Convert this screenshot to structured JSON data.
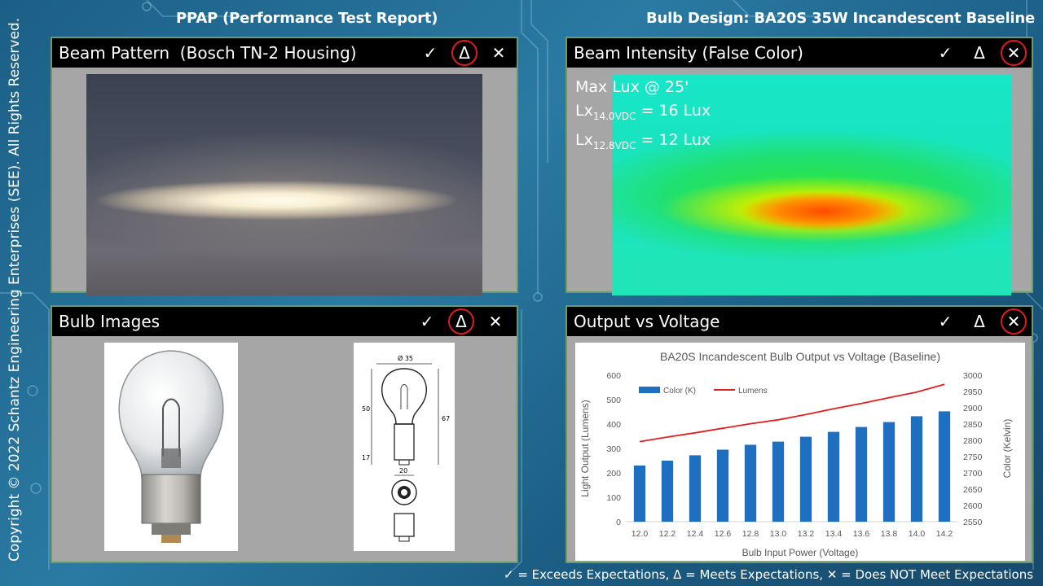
{
  "header": {
    "left": "PPAP (Performance Test Report)",
    "right": "Bulb Design: BA20S 35W Incandescent Baseline"
  },
  "copyright": "Copyright © 2022 Schantz Engineering Enterprises (SEE).  All Rights Reserved.",
  "ratings": {
    "exceeds": "✓",
    "meets": "Δ",
    "not_meet": "✕"
  },
  "panels": {
    "beam_pattern": {
      "title": "Beam Pattern  (Bosch TN-2 Housing)",
      "selected": "meets"
    },
    "beam_intensity": {
      "title": "Beam Intensity (False Color)",
      "selected": "not_meet",
      "line1": "Max Lux @ 25'",
      "lx": "Lx",
      "sub1": "14.0VDC",
      "val1": "= 16 Lux",
      "sub2": "12.8VDC",
      "val2": "= 12 Lux"
    },
    "bulb_images": {
      "title": "Bulb Images",
      "selected": "meets",
      "dims": {
        "d35": "Ø 35",
        "d50": "50",
        "d67": "67",
        "d17": "17",
        "d20": "20"
      }
    },
    "output_voltage": {
      "title": "Output vs Voltage",
      "selected": "not_meet"
    }
  },
  "chart_data": {
    "type": "bar",
    "title": "BA20S Incandescent Bulb Output vs Voltage (Baseline)",
    "xlabel": "Bulb Input Power (Voltage)",
    "ylabel": "Light Output (Lumens)",
    "y2label": "Color (Kelvin)",
    "categories": [
      "12.0",
      "12.2",
      "12.4",
      "12.6",
      "12.8",
      "13.0",
      "13.2",
      "13.4",
      "13.6",
      "13.8",
      "14.0",
      "14.2"
    ],
    "series": [
      {
        "name": "Color (K)",
        "type": "bar",
        "axis": "left",
        "color": "#1f6fc0",
        "values": [
          230,
          250,
          272,
          295,
          315,
          328,
          348,
          368,
          388,
          408,
          432,
          452
        ]
      },
      {
        "name": "Lumens",
        "type": "line",
        "axis": "right",
        "color": "#e02020",
        "values": [
          2796,
          2810,
          2823,
          2837,
          2851,
          2863,
          2879,
          2897,
          2913,
          2931,
          2948,
          2972
        ]
      }
    ],
    "ylim": [
      0,
      600
    ],
    "yticks": [
      "0",
      "100",
      "200",
      "300",
      "400",
      "500",
      "600"
    ],
    "y2lim": [
      2550,
      3000
    ],
    "y2ticks": [
      "2550",
      "2600",
      "2650",
      "2700",
      "2750",
      "2800",
      "2850",
      "2900",
      "2950",
      "3000"
    ],
    "legend_position": "top-left"
  },
  "legend_text": "✓ = Exceeds Expectations, Δ = Meets Expectations, ✕ = Does NOT Meet Expectations"
}
